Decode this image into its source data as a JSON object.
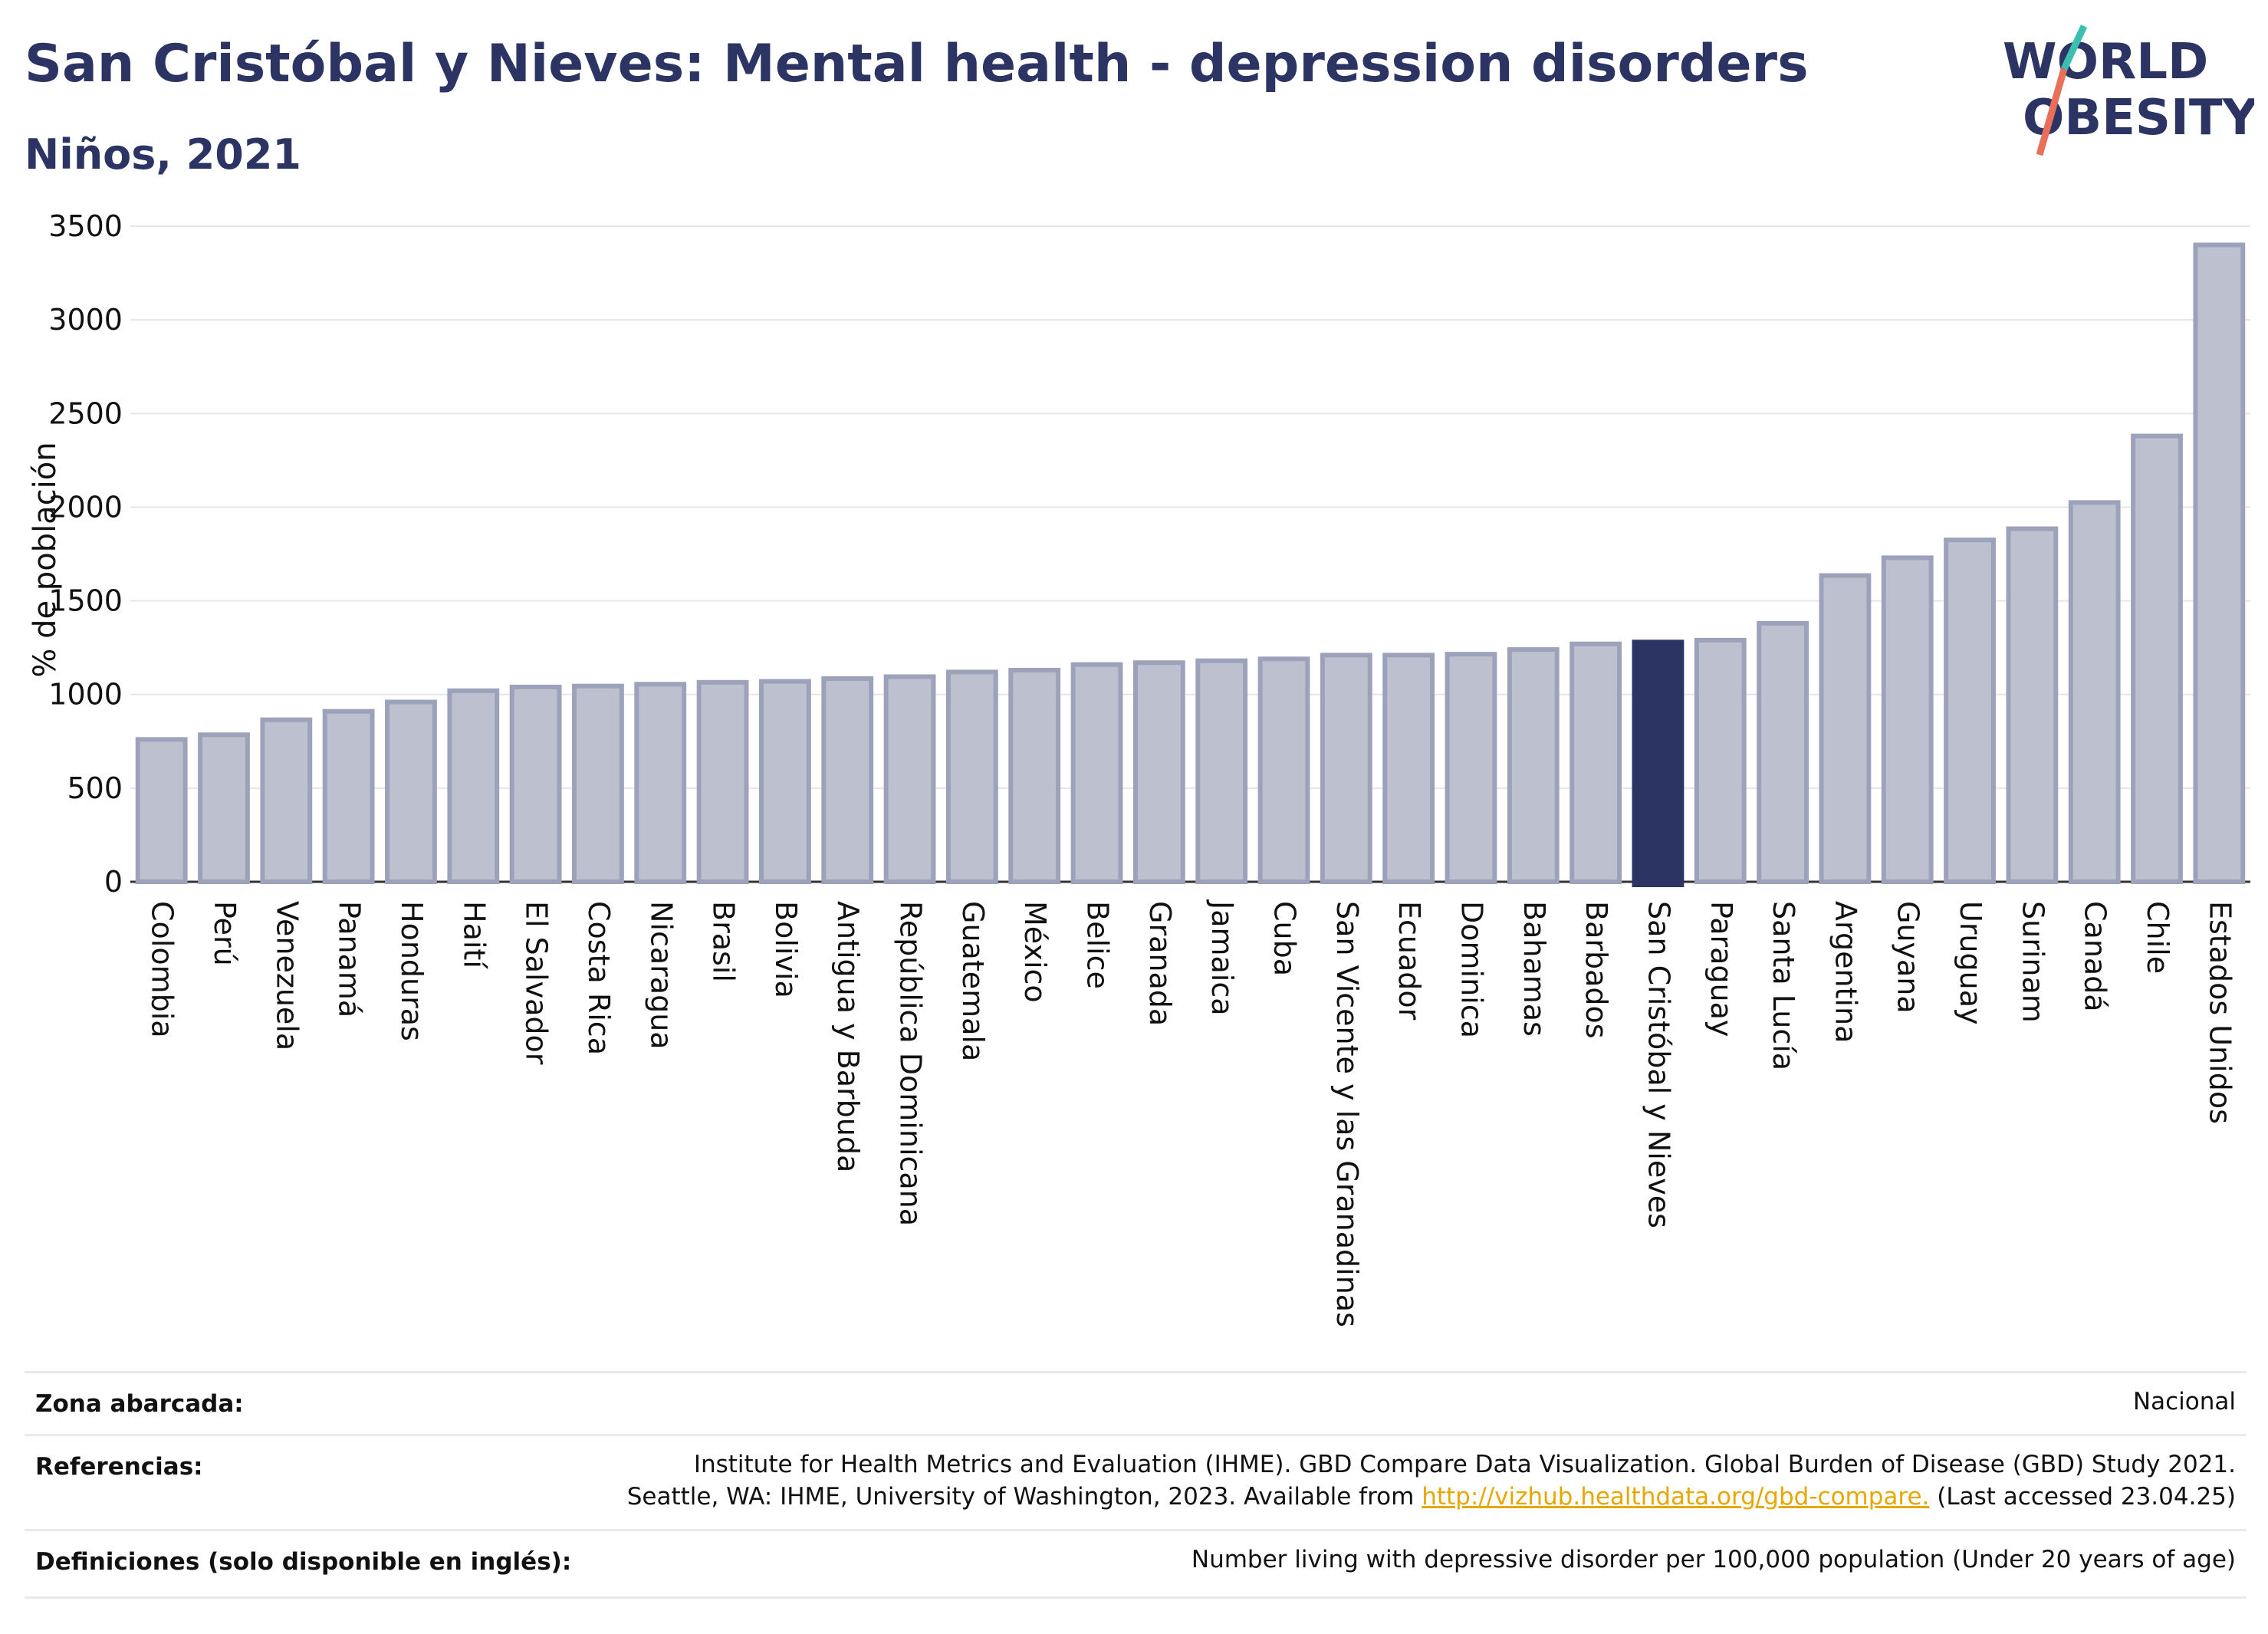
{
  "header": {
    "title": "San Cristóbal y Nieves: Mental health - depression disorders",
    "subtitle": "Niños, 2021"
  },
  "logo": {
    "line1": "WORLD",
    "line2": "OBESITY",
    "accent_teal": "#3bbfb0",
    "accent_coral": "#e8705a"
  },
  "colors": {
    "bar": "#bcc0cf",
    "bar_border": "#9da2bb",
    "highlight": "#2b3462",
    "grid": "#e6e6e6"
  },
  "chart_data": {
    "type": "bar",
    "ylabel": "% de población",
    "ylim": [
      0,
      3500
    ],
    "yticks": [
      0,
      500,
      1000,
      1500,
      2000,
      2500,
      3000,
      3500
    ],
    "highlight": "San Cristóbal y Nieves",
    "categories": [
      "Colombia",
      "Perú",
      "Venezuela",
      "Panamá",
      "Honduras",
      "Haití",
      "El Salvador",
      "Costa Rica",
      "Nicaragua",
      "Brasil",
      "Bolivia",
      "Antigua y Barbuda",
      "República Dominicana",
      "Guatemala",
      "México",
      "Belice",
      "Granada",
      "Jamaica",
      "Cuba",
      "San Vicente y las Granadinas",
      "Ecuador",
      "Dominica",
      "Bahamas",
      "Barbados",
      "San Cristóbal y Nieves",
      "Paraguay",
      "Santa Lucía",
      "Argentina",
      "Guyana",
      "Uruguay",
      "Surinam",
      "Canadá",
      "Chile",
      "Estados Unidos"
    ],
    "values": [
      760,
      785,
      865,
      910,
      960,
      1020,
      1040,
      1045,
      1055,
      1065,
      1070,
      1085,
      1095,
      1120,
      1130,
      1160,
      1170,
      1180,
      1190,
      1210,
      1210,
      1215,
      1240,
      1270,
      1280,
      1290,
      1380,
      1635,
      1730,
      1825,
      1885,
      2025,
      2380,
      3400
    ]
  },
  "footer": {
    "rows": [
      {
        "label": "Zona abarcada:",
        "value_lines": [
          "Nacional"
        ]
      },
      {
        "label": "Referencias:",
        "value_lines": [
          "Institute for Health Metrics and Evaluation (IHME). GBD Compare Data Visualization. Global Burden of Disease (GBD) Study 2021.",
          "Seattle, WA: IHME, University of Washington, 2023. Available from "
        ],
        "link": "http://vizhub.healthdata.org/gbd-compare.",
        "after_link": " (Last accessed 23.04.25)"
      },
      {
        "label": "Definiciones (solo disponible en inglés):",
        "value_lines": [
          "Number living with depressive disorder per 100,000 population (Under 20 years of age)"
        ]
      }
    ]
  }
}
